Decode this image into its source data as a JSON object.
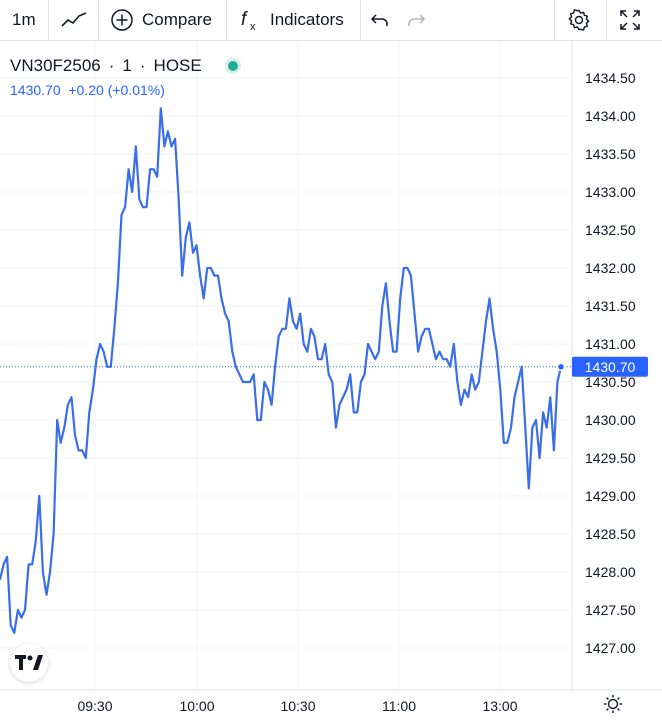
{
  "toolbar": {
    "interval": "1m",
    "compare_label": "Compare",
    "indicators_label": "Indicators"
  },
  "legend": {
    "symbol": "VN30F2506",
    "interval": "1",
    "exchange": "HOSE",
    "price_line": "1430.70  +0.20 (+0.01%)"
  },
  "colors": {
    "line": "#3a6ee8",
    "accent": "#2962ff",
    "status": "#22ab94"
  },
  "chart_data": {
    "type": "line",
    "x_ticks": [
      "09:30",
      "10:00",
      "10:30",
      "11:00",
      "13:00"
    ],
    "y_ticks": [
      "1434.50",
      "1434.00",
      "1433.50",
      "1433.00",
      "1432.50",
      "1432.00",
      "1431.50",
      "1431.00",
      "1430.50",
      "1430.00",
      "1429.50",
      "1429.00",
      "1428.50",
      "1428.00",
      "1427.50",
      "1427.00"
    ],
    "ylim": [
      1426.5,
      1434.9
    ],
    "last_value": "1430.70",
    "grid": true,
    "values": [
      1427.9,
      1428.1,
      1428.2,
      1427.3,
      1427.2,
      1427.5,
      1427.4,
      1427.5,
      1428.1,
      1428.1,
      1428.4,
      1429.0,
      1428.0,
      1427.7,
      1428.0,
      1428.5,
      1430.0,
      1429.7,
      1429.9,
      1430.2,
      1430.3,
      1429.8,
      1429.6,
      1429.6,
      1429.5,
      1430.1,
      1430.4,
      1430.8,
      1431.0,
      1430.9,
      1430.7,
      1430.7,
      1431.2,
      1431.8,
      1432.7,
      1432.8,
      1433.3,
      1433.0,
      1433.6,
      1432.9,
      1432.8,
      1432.8,
      1433.3,
      1433.3,
      1433.2,
      1434.1,
      1433.6,
      1433.8,
      1433.6,
      1433.7,
      1432.9,
      1431.9,
      1432.4,
      1432.6,
      1432.2,
      1432.3,
      1431.9,
      1431.6,
      1432.0,
      1432.0,
      1431.9,
      1431.9,
      1431.6,
      1431.4,
      1431.3,
      1430.9,
      1430.7,
      1430.6,
      1430.5,
      1430.5,
      1430.5,
      1430.6,
      1430.0,
      1430.0,
      1430.5,
      1430.4,
      1430.2,
      1430.7,
      1431.1,
      1431.2,
      1431.2,
      1431.6,
      1431.3,
      1431.2,
      1431.4,
      1431.0,
      1430.9,
      1431.2,
      1431.1,
      1430.8,
      1430.8,
      1431.0,
      1430.6,
      1430.5,
      1429.9,
      1430.2,
      1430.3,
      1430.4,
      1430.6,
      1430.1,
      1430.1,
      1430.5,
      1430.6,
      1431.0,
      1430.9,
      1430.8,
      1430.9,
      1431.5,
      1431.8,
      1431.3,
      1430.9,
      1430.9,
      1431.6,
      1432.0,
      1432.0,
      1431.9,
      1431.4,
      1430.9,
      1431.1,
      1431.2,
      1431.2,
      1431.0,
      1430.8,
      1430.9,
      1430.8,
      1430.8,
      1430.7,
      1431.0,
      1430.5,
      1430.2,
      1430.4,
      1430.3,
      1430.6,
      1430.4,
      1430.5,
      1430.9,
      1431.3,
      1431.6,
      1431.2,
      1430.9,
      1430.4,
      1429.7,
      1429.7,
      1429.9,
      1430.3,
      1430.5,
      1430.7,
      1429.9,
      1429.1,
      1429.9,
      1430.0,
      1429.5,
      1430.1,
      1429.9,
      1430.3,
      1429.6,
      1430.5,
      1430.7
    ]
  }
}
